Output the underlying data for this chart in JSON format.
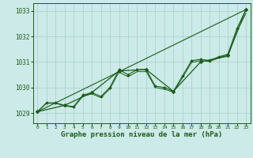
{
  "bg_color": "#cceae7",
  "grid_color": "#aad4d0",
  "line_color": "#1a5c1a",
  "marker_color": "#1a5c1a",
  "xlabel": "Graphe pression niveau de la mer (hPa)",
  "xlabel_fontsize": 6.5,
  "ylim": [
    1028.6,
    1033.3
  ],
  "xlim": [
    -0.5,
    23.5
  ],
  "yticks": [
    1029,
    1030,
    1031,
    1032,
    1033
  ],
  "xticks": [
    0,
    1,
    2,
    3,
    4,
    5,
    6,
    7,
    8,
    9,
    10,
    11,
    12,
    13,
    14,
    15,
    16,
    17,
    18,
    19,
    20,
    21,
    22,
    23
  ],
  "line_main_x": [
    0,
    1,
    2,
    3,
    4,
    5,
    6,
    7,
    8,
    9,
    10,
    11,
    12,
    13,
    14,
    15,
    16,
    17,
    18,
    19,
    20,
    21,
    22,
    23
  ],
  "line_main_y": [
    1029.05,
    1029.4,
    1029.4,
    1029.3,
    1029.25,
    1029.7,
    1029.8,
    1029.65,
    1030.0,
    1030.7,
    1030.5,
    1030.7,
    1030.7,
    1030.05,
    1030.0,
    1029.85,
    1030.45,
    1031.05,
    1031.1,
    1031.05,
    1031.2,
    1031.3,
    1032.3,
    1033.05
  ],
  "line_smooth_x": [
    0,
    1,
    2,
    3,
    4,
    5,
    6,
    7,
    8,
    9,
    10,
    11,
    12,
    13,
    14,
    15,
    16,
    17,
    18,
    19,
    20,
    21,
    22,
    23
  ],
  "line_smooth_y": [
    1029.05,
    1029.38,
    1029.38,
    1029.28,
    1029.22,
    1029.65,
    1029.75,
    1029.6,
    1029.95,
    1030.6,
    1030.42,
    1030.62,
    1030.62,
    1030.0,
    1029.93,
    1029.82,
    1030.38,
    1030.98,
    1031.05,
    1031.02,
    1031.15,
    1031.22,
    1032.2,
    1032.9
  ],
  "line_hourly_x": [
    0,
    3,
    6,
    9,
    12,
    15,
    18,
    21,
    23
  ],
  "line_hourly_y": [
    1029.05,
    1029.3,
    1029.8,
    1030.65,
    1030.7,
    1029.85,
    1031.0,
    1031.25,
    1033.05
  ],
  "line_trend_x": [
    0,
    23
  ],
  "line_trend_y": [
    1029.05,
    1033.05
  ]
}
